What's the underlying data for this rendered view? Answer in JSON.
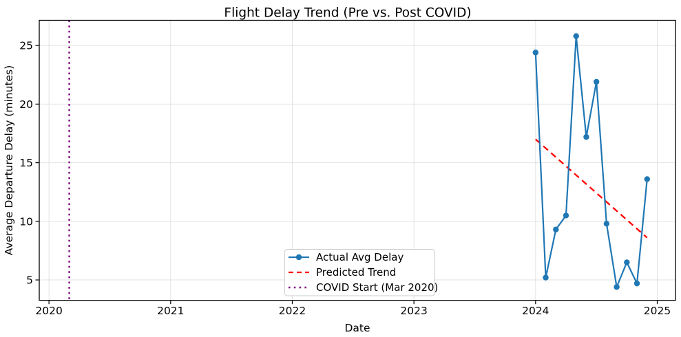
{
  "figure": {
    "title": "Flight Delay Trend (Pre vs. Post COVID)",
    "xlabel": "Date",
    "ylabel": "Average Departure Delay (minutes)"
  },
  "legend": {
    "items": [
      {
        "label": "Actual Avg Delay",
        "marker": "blue-solid-line-circle-marker"
      },
      {
        "label": "Predicted Trend",
        "marker": "red-dashed-line"
      },
      {
        "label": "COVID Start (Mar 2020)",
        "marker": "purple-dotted-line"
      }
    ]
  },
  "chart_data": {
    "type": "line",
    "title": "Flight Delay Trend (Pre vs. Post COVID)",
    "xlabel": "Date",
    "ylabel": "Average Departure Delay (minutes)",
    "x_tick_labels": [
      "2020",
      "2021",
      "2022",
      "2023",
      "2024",
      "2025"
    ],
    "y_tick_labels": [
      "5",
      "10",
      "15",
      "20",
      "25"
    ],
    "xlim_years": [
      2019.92,
      2025.15
    ],
    "ylim": [
      3.26,
      27.15
    ],
    "grid": true,
    "legend_position": "lower center inside axes",
    "colors": {
      "actual": "#1f77b4",
      "predicted": "#ff0000",
      "covid": "#800080",
      "gridline": "#e2e2e2",
      "spine": "#000000"
    },
    "series": [
      {
        "name": "Actual Avg Delay",
        "style": "solid line with circle markers",
        "color": "#1f77b4",
        "x_months": [
          "2024-01",
          "2024-02",
          "2024-03",
          "2024-04",
          "2024-05",
          "2024-06",
          "2024-07",
          "2024-08",
          "2024-09",
          "2024-10",
          "2024-11",
          "2024-12"
        ],
        "values": [
          24.4,
          5.2,
          9.3,
          10.5,
          25.8,
          17.2,
          21.9,
          9.8,
          4.4,
          6.5,
          4.7,
          13.6
        ]
      },
      {
        "name": "Predicted Trend",
        "style": "dashed line",
        "color": "#ff0000",
        "x_months": [
          "2024-01",
          "2024-12"
        ],
        "values": [
          17.0,
          8.6
        ]
      },
      {
        "name": "COVID Start (Mar 2020)",
        "style": "dotted vertical line",
        "color": "#800080",
        "x_months": [
          "2020-03"
        ],
        "values": []
      }
    ]
  }
}
